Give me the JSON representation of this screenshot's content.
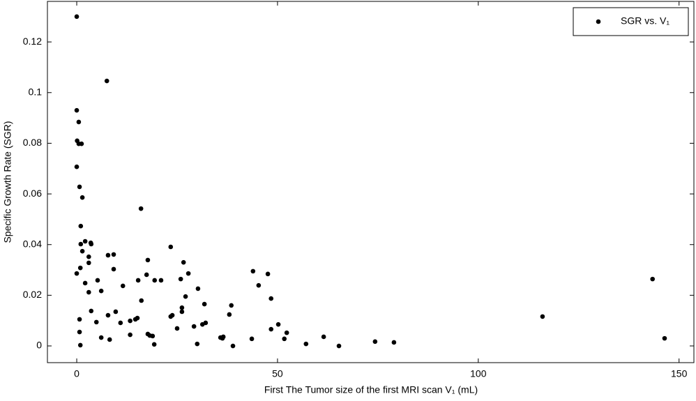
{
  "chart_data": {
    "type": "scatter",
    "xlabel": "First The Tumor size of the first MRI scan V₁ (mL)",
    "ylabel": "Specific Growth Rate (SGR)",
    "series": [
      {
        "name": "SGR vs. V₁",
        "color": "#000000",
        "x": [
          0,
          7.5,
          0,
          0.5,
          0.1,
          0.5,
          1.2,
          0,
          0.7,
          1.4,
          16,
          1.0,
          2.1,
          3.5,
          3.6,
          1.0,
          23.4,
          1.4,
          7.8,
          9.2,
          3.0,
          3.0,
          17.7,
          26.6,
          0.9,
          9.2,
          43.9,
          0,
          17.4,
          27.8,
          47.6,
          143.4,
          5.2,
          15.3,
          19.4,
          21,
          25.9,
          2.1,
          45.3,
          11.5,
          30.2,
          6.1,
          3.0,
          27.1,
          48.4,
          16.1,
          31.8,
          38.5,
          26.2,
          3.6,
          9.7,
          26.2,
          23.8,
          23.4,
          38,
          116,
          7.8,
          15.1,
          0.7,
          14.6,
          13.3,
          4.9,
          10.9,
          32.1,
          31.3,
          50.2,
          29.2,
          48.4,
          25,
          0.7,
          52.3,
          17.7,
          13.3,
          18.2,
          18.9,
          61.5,
          6.1,
          35.8,
          36.5,
          43.6,
          36.3,
          51.7,
          8.2,
          146.4,
          74.3,
          79,
          0.9,
          19.3,
          30,
          57.1,
          38.9,
          65.3
        ],
        "values": [
          0.13,
          0.1046,
          0.093,
          0.0884,
          0.081,
          0.0798,
          0.0798,
          0.0707,
          0.0628,
          0.0586,
          0.0542,
          0.0473,
          0.0413,
          0.0407,
          0.0402,
          0.0402,
          0.0391,
          0.0374,
          0.0358,
          0.0361,
          0.0352,
          0.0328,
          0.0339,
          0.033,
          0.0308,
          0.0303,
          0.0295,
          0.0286,
          0.0281,
          0.0286,
          0.0284,
          0.0264,
          0.0259,
          0.0259,
          0.0259,
          0.0259,
          0.0264,
          0.0248,
          0.0239,
          0.0237,
          0.0226,
          0.0217,
          0.0212,
          0.0195,
          0.0187,
          0.0179,
          0.0165,
          0.016,
          0.0151,
          0.0138,
          0.0135,
          0.0135,
          0.0121,
          0.0116,
          0.0124,
          0.0116,
          0.0121,
          0.011,
          0.0105,
          0.0105,
          0.0099,
          0.0094,
          0.0091,
          0.0091,
          0.0085,
          0.0085,
          0.0077,
          0.0066,
          0.0069,
          0.0055,
          0.0052,
          0.0047,
          0.0044,
          0.0041,
          0.0039,
          0.0036,
          0.0033,
          0.0033,
          0.0036,
          0.0028,
          0.003,
          0.0028,
          0.0025,
          0.003,
          0.0017,
          0.0014,
          0.0003,
          0.0006,
          0.0008,
          0.0008,
          0,
          0
        ]
      }
    ],
    "xlim": [
      -7.3,
      153.7
    ],
    "xticks": [
      0,
      50,
      100,
      150
    ],
    "ylim": [
      -0.0066,
      0.136
    ],
    "yticks": [
      0,
      0.02,
      0.04,
      0.06,
      0.08,
      0.1,
      0.12
    ],
    "legend": "top-right"
  }
}
